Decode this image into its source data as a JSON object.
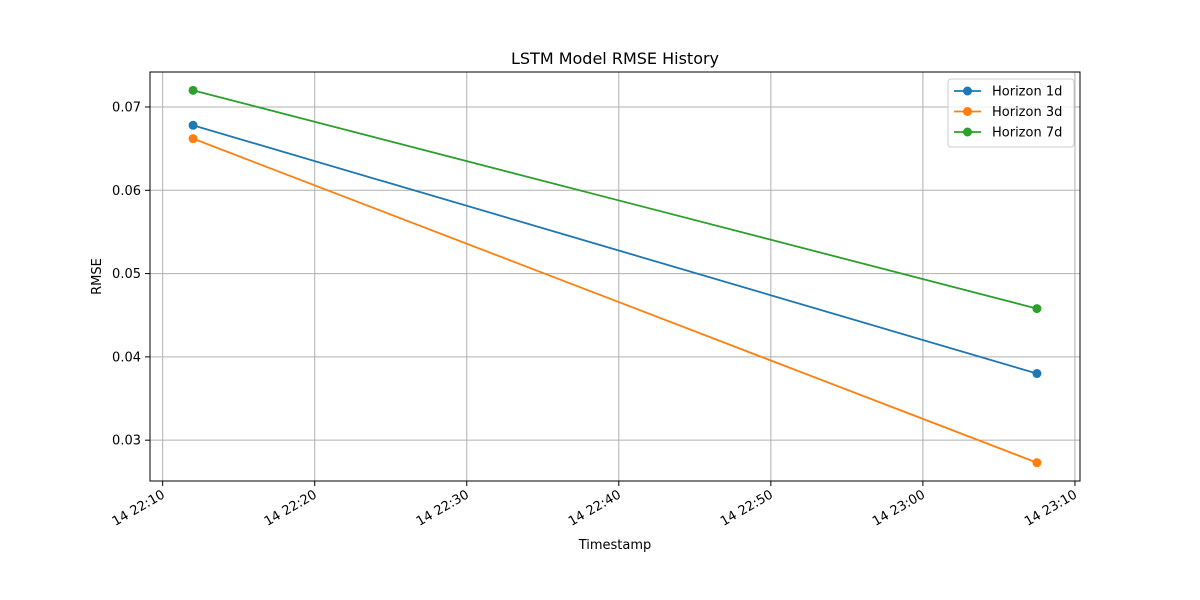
{
  "chart_data": {
    "type": "line",
    "title": "LSTM Model RMSE History",
    "xlabel": "Timestamp",
    "ylabel": "RMSE",
    "x": [
      "22:12",
      "23:07:30"
    ],
    "x_ticks": [
      "22:10",
      "22:20",
      "22:30",
      "22:40",
      "22:50",
      "23:00",
      "23:10"
    ],
    "x_tick_labels": [
      "14 22:10",
      "14 22:20",
      "14 22:30",
      "14 22:40",
      "14 22:50",
      "14 23:00",
      "14 23:10"
    ],
    "xlim": [
      "22:09:10",
      "23:10:20"
    ],
    "y_ticks": [
      0.03,
      0.04,
      0.05,
      0.06,
      0.07
    ],
    "y_tick_labels": [
      "0.03",
      "0.04",
      "0.05",
      "0.06",
      "0.07"
    ],
    "ylim": [
      0.0251,
      0.0742
    ],
    "grid": true,
    "legend_position": "top-right",
    "series": [
      {
        "name": "Horizon 1d",
        "color": "#1f77b4",
        "values": [
          0.0678,
          0.038
        ]
      },
      {
        "name": "Horizon 3d",
        "color": "#ff7f0e",
        "values": [
          0.0662,
          0.0273
        ]
      },
      {
        "name": "Horizon 7d",
        "color": "#2ca02c",
        "values": [
          0.072,
          0.0458
        ]
      }
    ]
  }
}
